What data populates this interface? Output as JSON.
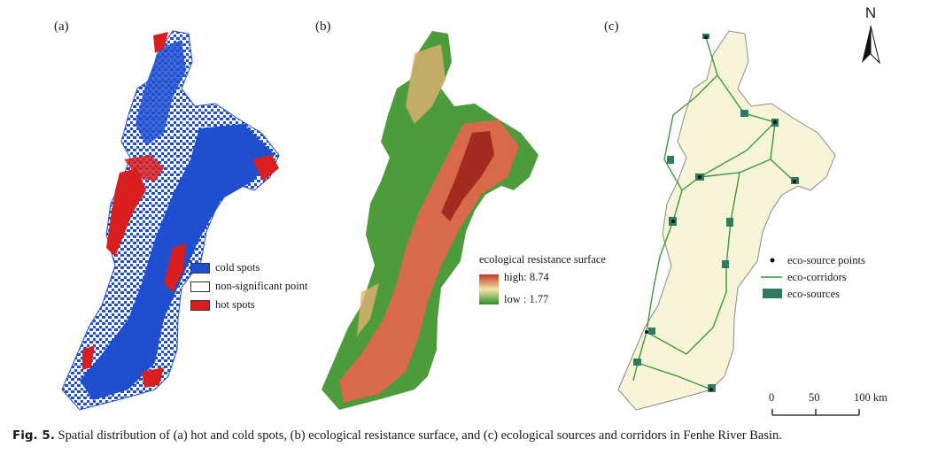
{
  "panels": {
    "a": {
      "label": "(a)",
      "legend": [
        {
          "label": "cold spots",
          "color": "#1f4fd0"
        },
        {
          "label": "non-significant point",
          "color": "#ffffff"
        },
        {
          "label": "hot spots",
          "color": "#d81e1e"
        }
      ]
    },
    "b": {
      "label": "(b)",
      "legend_title": "ecological resistance surface",
      "high_label": "high: 8.74",
      "low_label": "low : 1.77",
      "high_color": "#c0392b",
      "mid_color": "#f3e7a2",
      "low_color": "#2e8b2e"
    },
    "c": {
      "label": "(c)",
      "legend": [
        {
          "label": "eco-source points",
          "symbol": "dot",
          "color": "#111111"
        },
        {
          "label": "eco-corridors",
          "symbol": "line",
          "color": "#3a9a3a"
        },
        {
          "label": "eco-sources",
          "symbol": "patch",
          "color": "#2e7d62"
        }
      ],
      "north_label": "N",
      "scale": {
        "ticks": [
          "0",
          "50",
          "100 km"
        ]
      }
    }
  },
  "caption": {
    "label": "Fig. 5.",
    "text": " Spatial distribution of (a) hot and cold spots, (b) ecological resistance surface, and (c) ecological sources and corridors in Fenhe River Basin."
  }
}
